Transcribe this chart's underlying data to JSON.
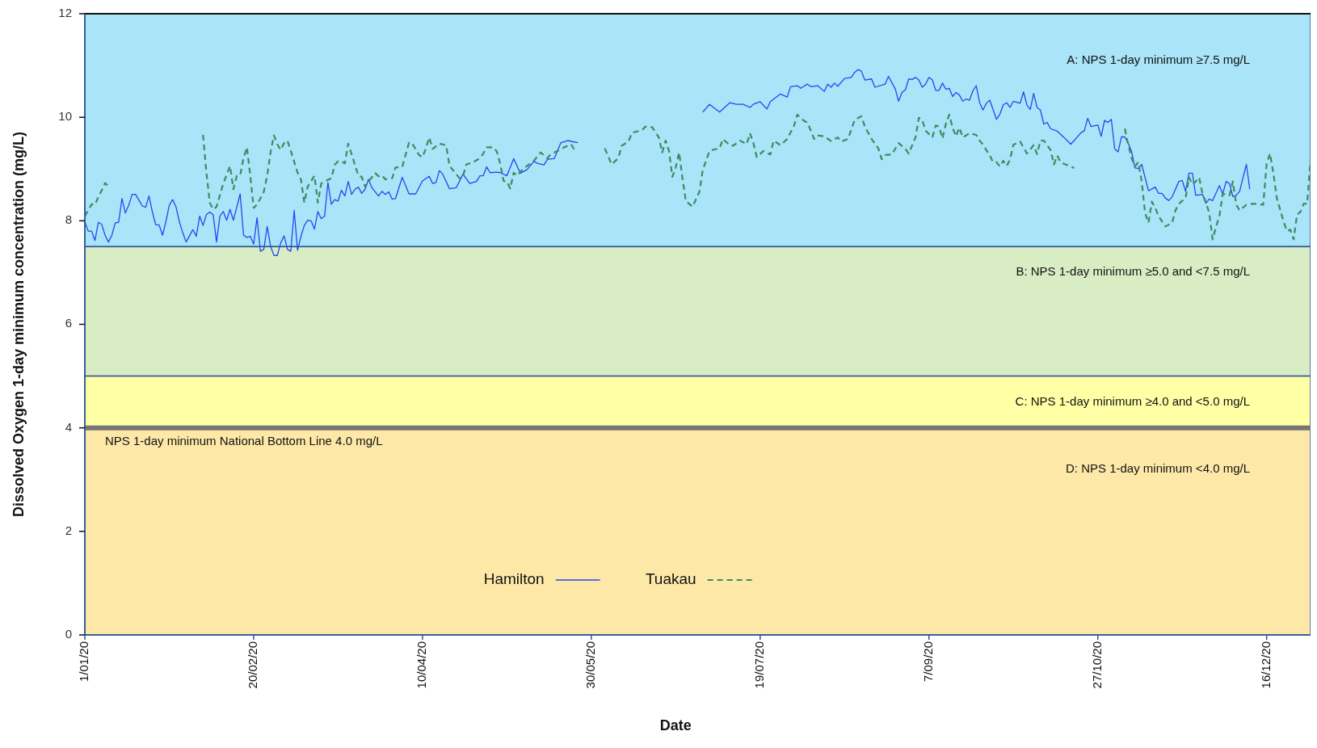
{
  "chart_data": {
    "type": "line",
    "xlabel": "Date",
    "ylabel": "Dissolved Oxygen 1-day minimum concentration (mg/L)",
    "xlim": [
      "2020-01-01",
      "2020-12-29"
    ],
    "xticks": [
      {
        "value": "2020-01-01",
        "label": "1/01/20"
      },
      {
        "value": "2020-02-20",
        "label": "20/02/20"
      },
      {
        "value": "2020-04-10",
        "label": "10/04/20"
      },
      {
        "value": "2020-05-30",
        "label": "30/05/20"
      },
      {
        "value": "2020-07-19",
        "label": "19/07/20"
      },
      {
        "value": "2020-09-07",
        "label": "7/09/20"
      },
      {
        "value": "2020-10-27",
        "label": "27/10/20"
      },
      {
        "value": "2020-12-16",
        "label": "16/12/20"
      }
    ],
    "ylim": [
      0,
      12
    ],
    "yticks": [
      0,
      2,
      4,
      6,
      8,
      10,
      12
    ],
    "grid": false,
    "legend": "bottom",
    "bands": [
      {
        "axis": "y",
        "from": 7.5,
        "to": 12,
        "label": "A: NPS 1-day minimum ≥7.5 mg/L",
        "color": "#a9e4f8"
      },
      {
        "axis": "y",
        "from": 5,
        "to": 7.5,
        "label": "B: NPS 1-day minimum ≥5.0 and <7.5 mg/L",
        "color": "#d9edc4"
      },
      {
        "axis": "y",
        "from": 4,
        "to": 5,
        "label": "C: NPS 1-day minimum ≥4.0 and <5.0 mg/L",
        "color": "#ffffa6"
      },
      {
        "axis": "y",
        "from": 0,
        "to": 4,
        "label": "D: NPS 1-day minimum <4.0 mg/L",
        "color": "#fde8a8"
      }
    ],
    "ref_lines": [
      {
        "axis": "y",
        "value": 4,
        "label": "NPS 1-day minimum National Bottom Line 4.0 mg/L",
        "color": "#767676"
      }
    ],
    "series": [
      {
        "name": "Hamilton",
        "color": "#2448f0",
        "line_style": "solid",
        "x": [
          "2020-01-01",
          "2020-01-02",
          "2020-01-03",
          "2020-01-04",
          "2020-01-05",
          "2020-01-06",
          "2020-01-07",
          "2020-01-08",
          "2020-01-09",
          "2020-01-10",
          "2020-01-11",
          "2020-01-12",
          "2020-01-13",
          "2020-01-14",
          "2020-01-15",
          "2020-01-16",
          "2020-01-17",
          "2020-01-18",
          "2020-01-19",
          "2020-01-20",
          "2020-01-21",
          "2020-01-22",
          "2020-01-23",
          "2020-01-24",
          "2020-01-25",
          "2020-01-26",
          "2020-01-27",
          "2020-01-28",
          "2020-01-29",
          "2020-01-30",
          "2020-01-31",
          "2020-02-01",
          "2020-02-02",
          "2020-02-03",
          "2020-02-04",
          "2020-02-05",
          "2020-02-06",
          "2020-02-07",
          "2020-02-08",
          "2020-02-09",
          "2020-02-10",
          "2020-02-11",
          "2020-02-12",
          "2020-02-13",
          "2020-02-14",
          "2020-02-16",
          "2020-02-17",
          "2020-02-18",
          "2020-02-19",
          "2020-02-20",
          "2020-02-21",
          "2020-02-22",
          "2020-02-23",
          "2020-02-24",
          "2020-02-25",
          "2020-02-26",
          "2020-02-27",
          "2020-02-28",
          "2020-02-29",
          "2020-03-01",
          "2020-03-02",
          "2020-03-03",
          "2020-03-04",
          "2020-03-05",
          "2020-03-06",
          "2020-03-07",
          "2020-03-08",
          "2020-03-09",
          "2020-03-10",
          "2020-03-11",
          "2020-03-12",
          "2020-03-13",
          "2020-03-14",
          "2020-03-15",
          "2020-03-16",
          "2020-03-17",
          "2020-03-18",
          "2020-03-19",
          "2020-03-20",
          "2020-03-21",
          "2020-03-22",
          "2020-03-23",
          "2020-03-24",
          "2020-03-25",
          "2020-03-26",
          "2020-03-28",
          "2020-03-29",
          "2020-03-30",
          "2020-03-31",
          "2020-04-01",
          "2020-04-02",
          "2020-04-04",
          "2020-04-06",
          "2020-04-08",
          "2020-04-10",
          "2020-04-12",
          "2020-04-13",
          "2020-04-14",
          "2020-04-15",
          "2020-04-16",
          "2020-04-18",
          "2020-04-20",
          "2020-04-22",
          "2020-04-24",
          "2020-04-26",
          "2020-04-27",
          "2020-04-28",
          "2020-04-29",
          "2020-04-30",
          "2020-05-02",
          "2020-05-03",
          "2020-05-05",
          "2020-05-07",
          "2020-05-09",
          "2020-05-11",
          "2020-05-13",
          "2020-05-14",
          "2020-05-16",
          "2020-05-17",
          "2020-05-19",
          "2020-05-21",
          "2020-05-23",
          "2020-05-26",
          "2020-06-14",
          "2020-07-02",
          "2020-07-04",
          "2020-07-07",
          "2020-07-10",
          "2020-07-12",
          "2020-07-14",
          "2020-07-16",
          "2020-07-17",
          "2020-07-19",
          "2020-07-21",
          "2020-07-22",
          "2020-07-25",
          "2020-07-27",
          "2020-07-28",
          "2020-07-30",
          "2020-07-31",
          "2020-08-02",
          "2020-08-03",
          "2020-08-05",
          "2020-08-07",
          "2020-08-08",
          "2020-08-09",
          "2020-08-10",
          "2020-08-11",
          "2020-08-13",
          "2020-08-15",
          "2020-08-16",
          "2020-08-17",
          "2020-08-18",
          "2020-08-19",
          "2020-08-21",
          "2020-08-22",
          "2020-08-25",
          "2020-08-26",
          "2020-08-28",
          "2020-08-29",
          "2020-08-30",
          "2020-08-31",
          "2020-09-01",
          "2020-09-02",
          "2020-09-03",
          "2020-09-04",
          "2020-09-05",
          "2020-09-06",
          "2020-09-07",
          "2020-09-08",
          "2020-09-09",
          "2020-09-10",
          "2020-09-11",
          "2020-09-12",
          "2020-09-13",
          "2020-09-14",
          "2020-09-15",
          "2020-09-16",
          "2020-09-17",
          "2020-09-18",
          "2020-09-19",
          "2020-09-20",
          "2020-09-21",
          "2020-09-22",
          "2020-09-23",
          "2020-09-24",
          "2020-09-25",
          "2020-09-27",
          "2020-09-28",
          "2020-09-29",
          "2020-09-30",
          "2020-10-01",
          "2020-10-02",
          "2020-10-04",
          "2020-10-05",
          "2020-10-06",
          "2020-10-07",
          "2020-10-08",
          "2020-10-09",
          "2020-10-10",
          "2020-10-11",
          "2020-10-12",
          "2020-10-13",
          "2020-10-15",
          "2020-10-17",
          "2020-10-19",
          "2020-10-20",
          "2020-10-22",
          "2020-10-23",
          "2020-10-24",
          "2020-10-25",
          "2020-10-27",
          "2020-10-28",
          "2020-10-29",
          "2020-10-30",
          "2020-10-31",
          "2020-11-01",
          "2020-11-02",
          "2020-11-03",
          "2020-11-04",
          "2020-11-05",
          "2020-11-06",
          "2020-11-07",
          "2020-11-08",
          "2020-11-09",
          "2020-11-11",
          "2020-11-13",
          "2020-11-14",
          "2020-11-15",
          "2020-11-16",
          "2020-11-17",
          "2020-11-18",
          "2020-11-20",
          "2020-11-21",
          "2020-11-22",
          "2020-11-23",
          "2020-11-24",
          "2020-11-25",
          "2020-11-27",
          "2020-11-28",
          "2020-11-29",
          "2020-11-30",
          "2020-12-02",
          "2020-12-03",
          "2020-12-04",
          "2020-12-05",
          "2020-12-06",
          "2020-12-07",
          "2020-12-08",
          "2020-12-10",
          "2020-12-11"
        ],
        "values": [
          7.98,
          7.8,
          7.8,
          7.62,
          7.97,
          7.93,
          7.72,
          7.59,
          7.72,
          7.96,
          7.97,
          8.43,
          8.15,
          8.3,
          8.51,
          8.51,
          8.4,
          8.29,
          8.26,
          8.48,
          8.17,
          7.92,
          7.92,
          7.72,
          7.98,
          8.3,
          8.41,
          8.27,
          7.98,
          7.77,
          7.59,
          7.71,
          7.83,
          7.7,
          8.09,
          7.91,
          8.12,
          8.17,
          8.12,
          7.59,
          8.09,
          8.18,
          8.01,
          8.22,
          8.01,
          8.52,
          7.72,
          7.68,
          7.7,
          7.55,
          8.06,
          7.41,
          7.45,
          7.89,
          7.51,
          7.33,
          7.33,
          7.57,
          7.71,
          7.45,
          7.41,
          8.2,
          7.43,
          7.7,
          7.91,
          8.01,
          8.0,
          7.84,
          8.18,
          8.04,
          8.09,
          8.74,
          8.32,
          8.41,
          8.38,
          8.59,
          8.48,
          8.76,
          8.51,
          8.61,
          8.65,
          8.53,
          8.61,
          8.8,
          8.64,
          8.48,
          8.57,
          8.51,
          8.56,
          8.42,
          8.43,
          8.84,
          8.52,
          8.52,
          8.77,
          8.86,
          8.72,
          8.74,
          8.97,
          8.9,
          8.62,
          8.64,
          8.9,
          8.72,
          8.76,
          8.87,
          8.87,
          9.04,
          8.93,
          8.94,
          8.93,
          8.87,
          9.2,
          8.92,
          8.99,
          9.15,
          9.11,
          9.08,
          9.19,
          9.2,
          9.51,
          9.55,
          9.51,
          null,
          10.1,
          10.25,
          10.1,
          10.28,
          10.25,
          10.25,
          10.19,
          10.25,
          10.3,
          10.16,
          10.3,
          10.45,
          10.39,
          10.59,
          10.61,
          10.56,
          10.64,
          10.59,
          10.61,
          10.5,
          10.64,
          10.58,
          10.66,
          10.6,
          10.75,
          10.77,
          10.87,
          10.92,
          10.89,
          10.72,
          10.74,
          10.58,
          10.64,
          10.79,
          10.55,
          10.31,
          10.48,
          10.53,
          10.74,
          10.73,
          10.77,
          10.72,
          10.58,
          10.64,
          10.77,
          10.72,
          10.52,
          10.52,
          10.66,
          10.54,
          10.56,
          10.4,
          10.48,
          10.43,
          10.31,
          10.35,
          10.33,
          10.51,
          10.61,
          10.28,
          10.14,
          10.27,
          10.33,
          9.96,
          10.06,
          10.24,
          10.28,
          10.19,
          10.31,
          10.27,
          10.49,
          10.24,
          10.15,
          10.46,
          10.19,
          10.14,
          9.87,
          9.9,
          9.78,
          9.73,
          9.61,
          9.48,
          9.55,
          9.7,
          9.74,
          9.98,
          9.82,
          9.85,
          9.63,
          9.94,
          9.9,
          9.96,
          9.39,
          9.33,
          9.62,
          9.62,
          9.5,
          9.34,
          9.02,
          9.01,
          9.09,
          8.58,
          8.65,
          8.53,
          8.53,
          8.44,
          8.39,
          8.46,
          8.76,
          8.78,
          8.57,
          8.92,
          8.92,
          8.49,
          8.51,
          8.34,
          8.42,
          8.39,
          8.68,
          8.52,
          8.76,
          8.72,
          8.47,
          8.49,
          8.57,
          9.09,
          8.61
        ]
      },
      {
        "name": "Tuakau",
        "color": "#3b8d5f",
        "line_style": "dashed",
        "x": [
          "2020-01-01",
          "2020-01-03",
          "2020-01-04",
          "2020-01-05",
          "2020-01-06",
          "2020-01-07",
          "2020-01-08",
          "2020-01-20",
          "2020-02-05",
          "2020-02-06",
          "2020-02-07",
          "2020-02-08",
          "2020-02-09",
          "2020-02-11",
          "2020-02-13",
          "2020-02-14",
          "2020-02-15",
          "2020-02-16",
          "2020-02-17",
          "2020-02-18",
          "2020-02-19",
          "2020-02-20",
          "2020-02-21",
          "2020-02-23",
          "2020-02-24",
          "2020-02-25",
          "2020-02-26",
          "2020-02-27",
          "2020-02-28",
          "2020-02-29",
          "2020-03-01",
          "2020-03-02",
          "2020-03-04",
          "2020-03-05",
          "2020-03-06",
          "2020-03-07",
          "2020-03-09",
          "2020-03-10",
          "2020-03-11",
          "2020-03-12",
          "2020-03-14",
          "2020-03-15",
          "2020-03-16",
          "2020-03-17",
          "2020-03-18",
          "2020-03-19",
          "2020-03-21",
          "2020-03-22",
          "2020-03-23",
          "2020-03-24",
          "2020-03-25",
          "2020-03-27",
          "2020-03-28",
          "2020-03-29",
          "2020-03-30",
          "2020-04-01",
          "2020-04-02",
          "2020-04-04",
          "2020-04-06",
          "2020-04-07",
          "2020-04-09",
          "2020-04-10",
          "2020-04-11",
          "2020-04-12",
          "2020-04-13",
          "2020-04-15",
          "2020-04-17",
          "2020-04-18",
          "2020-04-21",
          "2020-04-22",
          "2020-04-23",
          "2020-04-25",
          "2020-04-27",
          "2020-04-28",
          "2020-04-29",
          "2020-05-01",
          "2020-05-02",
          "2020-05-03",
          "2020-05-04",
          "2020-05-05",
          "2020-05-06",
          "2020-05-07",
          "2020-05-08",
          "2020-05-10",
          "2020-05-11",
          "2020-05-13",
          "2020-05-15",
          "2020-05-17",
          "2020-05-18",
          "2020-05-20",
          "2020-05-22",
          "2020-05-24",
          "2020-05-25",
          "2020-06-01",
          "2020-06-03",
          "2020-06-05",
          "2020-06-07",
          "2020-06-08",
          "2020-06-10",
          "2020-06-11",
          "2020-06-14",
          "2020-06-15",
          "2020-06-17",
          "2020-06-19",
          "2020-06-20",
          "2020-06-21",
          "2020-06-22",
          "2020-06-23",
          "2020-06-24",
          "2020-06-25",
          "2020-06-26",
          "2020-06-27",
          "2020-06-29",
          "2020-07-01",
          "2020-07-02",
          "2020-07-04",
          "2020-07-05",
          "2020-07-07",
          "2020-07-08",
          "2020-07-10",
          "2020-07-11",
          "2020-07-13",
          "2020-07-15",
          "2020-07-16",
          "2020-07-17",
          "2020-07-18",
          "2020-07-20",
          "2020-07-22",
          "2020-07-23",
          "2020-07-25",
          "2020-07-27",
          "2020-07-29",
          "2020-07-30",
          "2020-08-01",
          "2020-08-02",
          "2020-08-04",
          "2020-08-05",
          "2020-08-07",
          "2020-08-09",
          "2020-08-11",
          "2020-08-12",
          "2020-08-14",
          "2020-08-16",
          "2020-08-18",
          "2020-08-19",
          "2020-08-21",
          "2020-08-23",
          "2020-08-24",
          "2020-08-25",
          "2020-08-27",
          "2020-08-29",
          "2020-08-31",
          "2020-09-01",
          "2020-09-03",
          "2020-09-04",
          "2020-09-05",
          "2020-09-06",
          "2020-09-08",
          "2020-09-09",
          "2020-09-10",
          "2020-09-11",
          "2020-09-12",
          "2020-09-13",
          "2020-09-14",
          "2020-09-15",
          "2020-09-16",
          "2020-09-17",
          "2020-09-19",
          "2020-09-21",
          "2020-09-22",
          "2020-09-23",
          "2020-09-25",
          "2020-09-26",
          "2020-09-27",
          "2020-09-28",
          "2020-09-29",
          "2020-09-30",
          "2020-10-01",
          "2020-10-02",
          "2020-10-04",
          "2020-10-06",
          "2020-10-08",
          "2020-10-09",
          "2020-10-10",
          "2020-10-11",
          "2020-10-13",
          "2020-10-14",
          "2020-10-15",
          "2020-10-16",
          "2020-10-17",
          "2020-10-20",
          "2020-10-28",
          "2020-11-04",
          "2020-11-05",
          "2020-11-06",
          "2020-11-07",
          "2020-11-08",
          "2020-11-09",
          "2020-11-10",
          "2020-11-11",
          "2020-11-12",
          "2020-11-13",
          "2020-11-14",
          "2020-11-16",
          "2020-11-18",
          "2020-11-19",
          "2020-11-20",
          "2020-11-22",
          "2020-11-23",
          "2020-11-24",
          "2020-11-25",
          "2020-11-26",
          "2020-11-27",
          "2020-11-28",
          "2020-11-29",
          "2020-11-30",
          "2020-12-01",
          "2020-12-02",
          "2020-12-03",
          "2020-12-05",
          "2020-12-06",
          "2020-12-07",
          "2020-12-08",
          "2020-12-10",
          "2020-12-12",
          "2020-12-15",
          "2020-12-16",
          "2020-12-17",
          "2020-12-18",
          "2020-12-19",
          "2020-12-21",
          "2020-12-22",
          "2020-12-23",
          "2020-12-24",
          "2020-12-25",
          "2020-12-26",
          "2020-12-27",
          "2020-12-28",
          "2020-12-29"
        ],
        "values": [
          8.09,
          8.32,
          8.31,
          8.46,
          8.59,
          8.73,
          8.66,
          null,
          9.66,
          8.93,
          8.35,
          8.22,
          8.27,
          8.72,
          9.06,
          8.61,
          8.87,
          8.88,
          9.21,
          9.42,
          8.87,
          8.25,
          8.31,
          8.56,
          8.87,
          9.32,
          9.65,
          9.48,
          9.37,
          9.5,
          9.55,
          9.35,
          8.93,
          8.8,
          8.35,
          8.66,
          8.87,
          8.35,
          8.72,
          8.76,
          8.82,
          9.08,
          9.15,
          9.15,
          9.11,
          9.49,
          9.08,
          8.87,
          8.85,
          8.66,
          8.76,
          8.92,
          8.86,
          8.88,
          8.8,
          8.82,
          9.03,
          9.04,
          9.51,
          9.49,
          9.27,
          9.23,
          9.4,
          9.61,
          9.39,
          9.49,
          9.46,
          9.06,
          8.82,
          8.87,
          9.09,
          9.13,
          9.21,
          9.3,
          9.42,
          9.42,
          9.34,
          9.11,
          8.77,
          8.76,
          8.62,
          8.93,
          8.87,
          9.02,
          9.06,
          9.16,
          9.32,
          9.21,
          9.29,
          9.35,
          9.42,
          9.48,
          9.37,
          null,
          9.4,
          9.09,
          9.21,
          9.45,
          9.53,
          9.7,
          9.75,
          9.82,
          9.81,
          9.61,
          9.32,
          9.55,
          9.35,
          8.85,
          9.03,
          9.32,
          8.82,
          8.38,
          8.27,
          8.56,
          8.98,
          9.35,
          9.37,
          9.4,
          9.58,
          9.46,
          9.45,
          9.55,
          9.48,
          9.69,
          9.5,
          9.23,
          9.35,
          9.28,
          9.55,
          9.46,
          9.58,
          9.83,
          10.05,
          9.93,
          9.9,
          9.58,
          9.65,
          9.63,
          9.54,
          9.61,
          9.53,
          9.58,
          9.95,
          10.02,
          9.82,
          9.58,
          9.4,
          9.19,
          9.27,
          9.28,
          9.5,
          9.39,
          9.3,
          9.61,
          9.99,
          9.95,
          9.74,
          9.61,
          9.84,
          9.82,
          9.59,
          9.87,
          10.05,
          9.8,
          9.63,
          9.8,
          9.61,
          9.69,
          9.66,
          9.55,
          9.47,
          9.26,
          9.13,
          9.13,
          9.05,
          9.16,
          9.06,
          9.18,
          9.47,
          9.53,
          9.3,
          9.46,
          9.29,
          9.55,
          9.55,
          9.37,
          9.09,
          9.26,
          9.13,
          9.1,
          9.02,
          null,
          9.78,
          9.47,
          9.21,
          9.05,
          9.13,
          8.76,
          8.15,
          7.96,
          8.37,
          8.25,
          8.09,
          7.89,
          7.96,
          8.2,
          8.33,
          8.44,
          8.84,
          8.7,
          8.76,
          8.84,
          8.52,
          8.36,
          8.15,
          7.64,
          7.88,
          8.09,
          8.52,
          8.49,
          8.76,
          8.31,
          8.2,
          8.31,
          8.33,
          8.31,
          9.1,
          9.3,
          8.92,
          8.44,
          7.99,
          7.8,
          7.83,
          7.64,
          8.12,
          8.17,
          8.33,
          8.33,
          9.18
        ]
      }
    ]
  }
}
